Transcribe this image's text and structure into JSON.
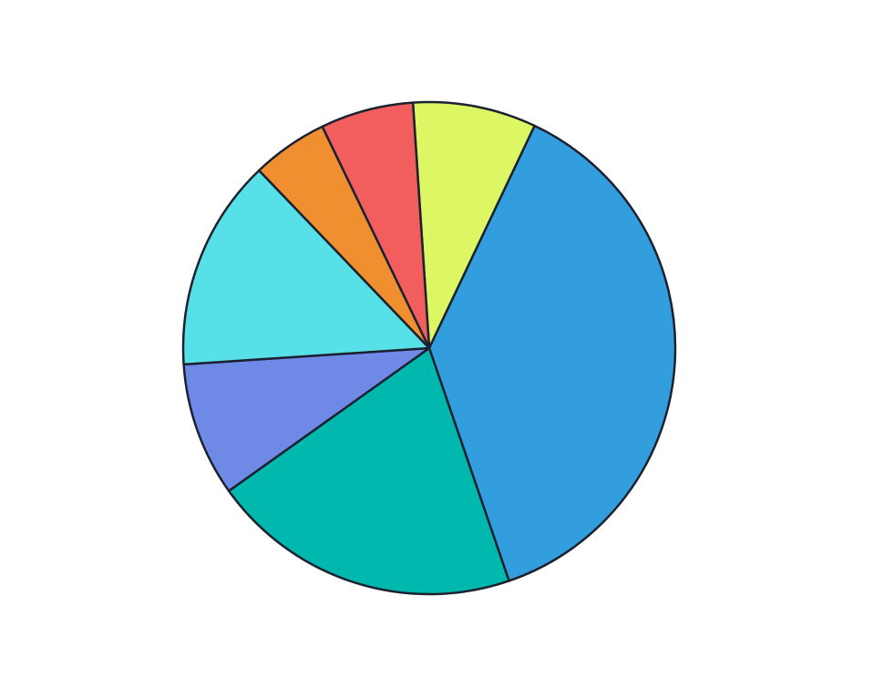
{
  "chart_data": {
    "type": "pie",
    "values": [
      8.1,
      37.7,
      20.4,
      8.8,
      13.9,
      5.0,
      6.1
    ],
    "colors": [
      "#dcf763",
      "#339ede",
      "#00b8ad",
      "#6e8ae6",
      "#57e0e8",
      "#ef8f30",
      "#f25e5e"
    ],
    "edgecolor": "#1c2130"
  }
}
